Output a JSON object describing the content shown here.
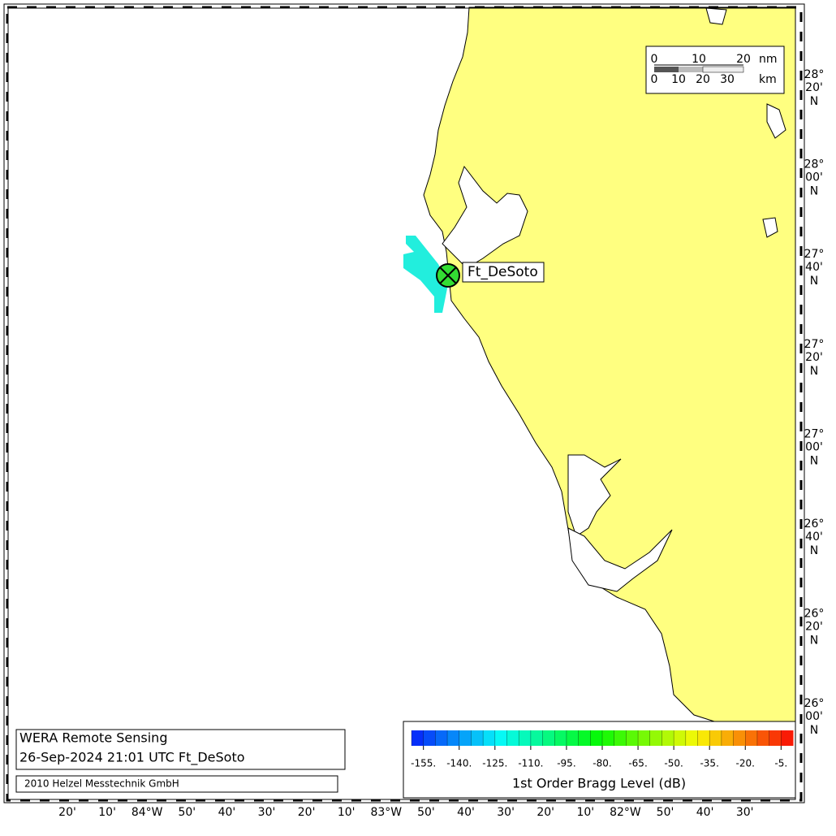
{
  "map": {
    "station": "Ft_DeSoto",
    "x_labels": [
      "20'",
      "10'",
      "84°W",
      "50'",
      "40'",
      "30'",
      "20'",
      "10'",
      "83°W",
      "50'",
      "40'",
      "30'",
      "20'",
      "10'",
      "82°W",
      "50'",
      "40'",
      "30'"
    ],
    "y_labels": [
      {
        "deg": "28°",
        "min": "20'",
        "hem": "N"
      },
      {
        "deg": "28°",
        "min": "00'",
        "hem": "N"
      },
      {
        "deg": "27°",
        "min": "40'",
        "hem": "N"
      },
      {
        "deg": "27°",
        "min": "20'",
        "hem": "N"
      },
      {
        "deg": "27°",
        "min": "00'",
        "hem": "N"
      },
      {
        "deg": "26°",
        "min": "40'",
        "hem": "N"
      },
      {
        "deg": "26°",
        "min": "20'",
        "hem": "N"
      },
      {
        "deg": "26°",
        "min": "00'",
        "hem": "N"
      }
    ],
    "scale": {
      "nm_labels": [
        "0",
        "10",
        "20"
      ],
      "nm_unit": "nm",
      "km_labels": [
        "0",
        "10",
        "20",
        "30"
      ],
      "km_unit": "km"
    }
  },
  "info": {
    "title": "WERA Remote Sensing",
    "timestamp": "26-Sep-2024 21:01 UTC  Ft_DeSoto",
    "copyright": "2010 Helzel Messtechnik GmbH"
  },
  "colorbar": {
    "range": [
      -160,
      0
    ],
    "label": "1st Order Bragg Level (dB)",
    "ticks": [
      {
        "value": -155,
        "label": "-155."
      },
      {
        "value": -140,
        "label": "-140."
      },
      {
        "value": -125,
        "label": "-125."
      },
      {
        "value": -110,
        "label": "-110."
      },
      {
        "value": -95,
        "label": "-95."
      },
      {
        "value": -80,
        "label": "-80."
      },
      {
        "value": -65,
        "label": "-65."
      },
      {
        "value": -50,
        "label": "-50."
      },
      {
        "value": -35,
        "label": "-35."
      },
      {
        "value": -20,
        "label": "-20."
      },
      {
        "value": -5,
        "label": "-5."
      }
    ]
  }
}
